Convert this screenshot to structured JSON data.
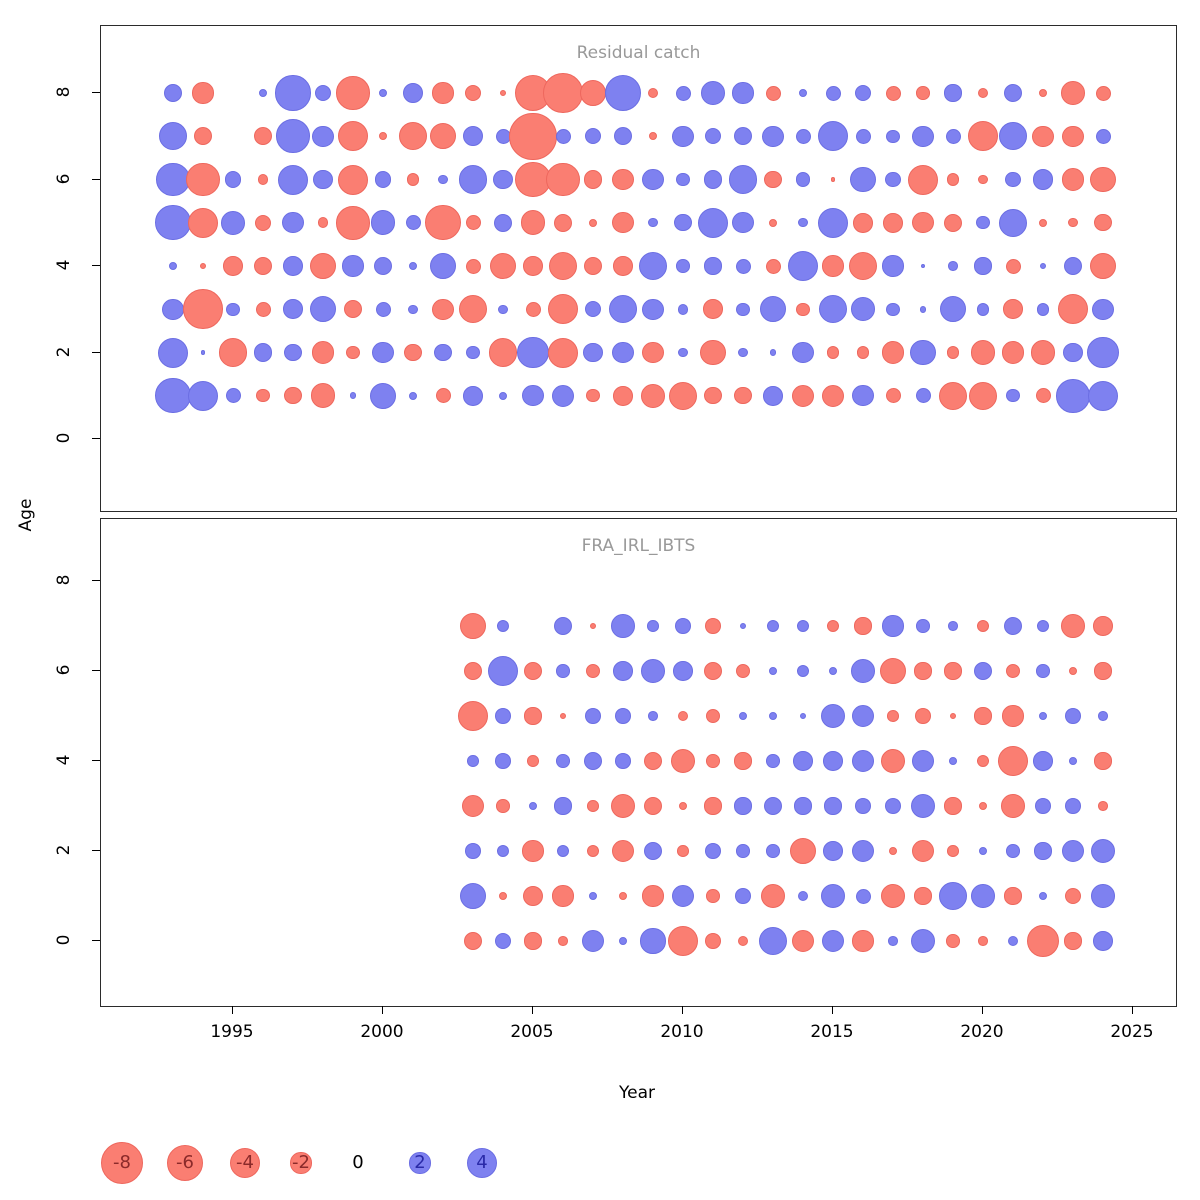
{
  "figure": {
    "background": "#ffffff"
  },
  "axes": {
    "xlabel": "Year",
    "ylabel": "Age",
    "x_ticks": [
      1995,
      2000,
      2005,
      2010,
      2015,
      2020,
      2025
    ],
    "y_ticks": [
      8,
      6,
      4,
      2,
      0
    ],
    "x_range": [
      1991.5,
      2026.5
    ],
    "y_range": [
      -1.2,
      9
    ]
  },
  "colors": {
    "negative_fill": "#fa7e72",
    "negative_border": "#ee675d",
    "positive_fill": "#7e81f0",
    "positive_border": "#6b6ee3",
    "panel_title": "#999999",
    "legend_negative_text": "#8b2a2a",
    "legend_positive_text": "#2a2aa8",
    "legend_zero_text": "#000000"
  },
  "legend": {
    "values": [
      -8,
      -6,
      -4,
      -2,
      0,
      2,
      4
    ]
  },
  "chart_data": {
    "type": "bubble",
    "title": "",
    "xlabel": "Year",
    "ylabel": "Age",
    "encoding": "circle radius proportional to sqrt(|residual|); red = negative residual, blue = positive residual",
    "panels": [
      {
        "title": "Residual catch",
        "x_start": 1993,
        "years": [
          1993,
          1994,
          1995,
          1996,
          1997,
          1998,
          1999,
          2000,
          2001,
          2002,
          2003,
          2004,
          2005,
          2006,
          2007,
          2008,
          2009,
          2010,
          2011,
          2012,
          2013,
          2014,
          2015,
          2016,
          2017,
          2018,
          2019,
          2020,
          2021,
          2022,
          2023,
          2024
        ],
        "series": [
          {
            "age": 8,
            "values": [
              1.5,
              -2,
              null,
              0.3,
              5.5,
              1.2,
              -5,
              0.3,
              1.8,
              -2,
              -1.2,
              -0.2,
              -6,
              -7,
              -3,
              6,
              -0.5,
              1,
              2.5,
              2,
              -1,
              0.3,
              1,
              1.2,
              -1,
              -0.8,
              1.3,
              -0.5,
              1.5,
              -0.3,
              -2.5,
              -1
            ]
          },
          {
            "age": 7,
            "values": [
              3.5,
              -1.5,
              null,
              -1.5,
              5,
              2,
              -4,
              -0.3,
              -3.5,
              -3,
              1.8,
              1,
              -10,
              1,
              1.2,
              1.5,
              -0.3,
              2,
              1.2,
              1.5,
              2,
              1,
              4,
              1,
              0.8,
              2,
              1,
              -4,
              3.5,
              -2,
              -2,
              1
            ]
          },
          {
            "age": 6,
            "values": [
              5,
              -5,
              1.2,
              -0.5,
              4,
              1.7,
              -4,
              1.2,
              -0.7,
              0.4,
              3.5,
              1.7,
              -5.5,
              -5,
              -1.5,
              -2,
              2,
              0.8,
              1.6,
              3.5,
              -1.3,
              0.9,
              -0.1,
              3,
              1.1,
              -4,
              -0.7,
              -0.4,
              1.1,
              1.8,
              -2.2,
              -3
            ]
          },
          {
            "age": 5,
            "values": [
              5.5,
              -4,
              2.5,
              -1.2,
              2,
              -0.5,
              -5,
              2.7,
              1,
              -5.5,
              -1,
              1.5,
              -2.7,
              -1.5,
              -0.3,
              -2,
              0.4,
              1.3,
              4,
              2,
              -0.3,
              0.4,
              4,
              -1.7,
              -1.7,
              -2,
              -1.5,
              0.8,
              3.5,
              -0.3,
              -0.4,
              -1.3
            ]
          },
          {
            "age": 4,
            "values": [
              0.3,
              -0.2,
              -1.7,
              -1.5,
              1.7,
              -3,
              2,
              1.5,
              0.3,
              3,
              -1,
              -3,
              -1.7,
              -3.5,
              -1.5,
              -1.7,
              3.5,
              0.8,
              1.3,
              1,
              -1,
              4,
              -2,
              -3.5,
              2,
              0.1,
              0.4,
              1.3,
              -1,
              0.2,
              1.5,
              -3
            ]
          },
          {
            "age": 3,
            "values": [
              2,
              -7,
              0.8,
              -1,
              1.7,
              3,
              -1.5,
              1,
              0.4,
              -2,
              -3.5,
              0.4,
              -1,
              -4,
              1.2,
              3.5,
              2,
              0.5,
              -1.7,
              0.8,
              3,
              -0.8,
              3.5,
              2.5,
              0.8,
              0.2,
              3,
              0.7,
              -1.7,
              0.7,
              -4,
              2
            ]
          },
          {
            "age": 2,
            "values": [
              4,
              0.1,
              -3.5,
              1.5,
              1.3,
              -2.2,
              -0.8,
              2,
              -1.3,
              1.3,
              0.8,
              -3.5,
              4.5,
              -4,
              1.7,
              2,
              -2,
              0.4,
              -3,
              0.4,
              0.2,
              2,
              -0.7,
              -0.7,
              -2.2,
              3,
              -0.7,
              -2.7,
              -2.2,
              -2.7,
              1.7,
              4.5
            ]
          },
          {
            "age": 1,
            "values": [
              5.5,
              4,
              1,
              -0.8,
              -1.3,
              -2.7,
              0.2,
              3,
              0.3,
              -1,
              1.7,
              0.3,
              2,
              2.2,
              -0.8,
              -1.7,
              -2.5,
              -3.5,
              -1.3,
              -1.3,
              1.7,
              -2.2,
              -2.2,
              2,
              -1,
              1,
              -3.5,
              -3.5,
              0.8,
              -1,
              5,
              4
            ]
          }
        ]
      },
      {
        "title": "FRA_IRL_IBTS",
        "x_start": 2003,
        "years": [
          2003,
          2004,
          2005,
          2006,
          2007,
          2008,
          2009,
          2010,
          2011,
          2012,
          2013,
          2014,
          2015,
          2016,
          2017,
          2018,
          2019,
          2020,
          2021,
          2022,
          2023,
          2024
        ],
        "series": [
          {
            "age": 7,
            "values": [
              -3,
              0.7,
              null,
              1.5,
              -0.2,
              2.5,
              0.6,
              1.1,
              -1.1,
              0.2,
              0.7,
              0.7,
              -0.7,
              -1.3,
              2,
              0.8,
              0.4,
              -0.7,
              1.5,
              0.7,
              -2.5,
              -1.7
            ]
          },
          {
            "age": 6,
            "values": [
              -1.5,
              4,
              -1.5,
              0.8,
              -0.9,
              1.7,
              2.5,
              1.7,
              -1.5,
              -0.9,
              0.3,
              0.7,
              0.3,
              2.5,
              -3,
              -1.3,
              -1.3,
              1.5,
              -0.9,
              0.8,
              -0.3,
              -1.3
            ]
          },
          {
            "age": 5,
            "values": [
              -4,
              1.1,
              -1.3,
              -0.2,
              1.1,
              1.1,
              0.4,
              -0.5,
              -0.9,
              0.3,
              0.3,
              0.2,
              2.7,
              2.2,
              -0.6,
              -1.1,
              -0.2,
              -1.3,
              -2,
              0.3,
              1.1,
              0.4
            ]
          },
          {
            "age": 4,
            "values": [
              0.6,
              1.1,
              -0.6,
              0.8,
              1.5,
              1.1,
              -1.5,
              -2.7,
              -0.8,
              -1.3,
              0.8,
              1.7,
              1.7,
              2.2,
              -2.7,
              2.2,
              0.3,
              -0.7,
              -4,
              1.7,
              0.3,
              -1.3
            ]
          },
          {
            "age": 3,
            "values": [
              -2.2,
              -0.8,
              0.3,
              1.3,
              -0.6,
              -2.7,
              -1.5,
              -0.3,
              -1.3,
              1.3,
              1.5,
              1.3,
              1.3,
              1.1,
              1.1,
              2.7,
              -1.3,
              -0.3,
              -2.5,
              1.1,
              1.1,
              -0.4
            ]
          },
          {
            "age": 2,
            "values": [
              1.1,
              0.7,
              -2,
              0.7,
              -0.7,
              -2.2,
              1.5,
              -0.6,
              1.1,
              0.8,
              0.8,
              -3,
              1.7,
              2.2,
              -0.3,
              -2.2,
              -0.6,
              0.3,
              0.8,
              1.3,
              2.2,
              2.7
            ]
          },
          {
            "age": 1,
            "values": [
              3.2,
              -0.3,
              -1.9,
              -2,
              0.3,
              -0.3,
              -2,
              2.2,
              -0.8,
              1.1,
              -2.7,
              0.5,
              2.7,
              1,
              -2.7,
              -1.3,
              3.5,
              2.5,
              -1.3,
              0.3,
              -1.2,
              2.5
            ]
          },
          {
            "age": 0,
            "values": [
              -1.5,
              1.2,
              -1.3,
              -0.4,
              2.2,
              0.3,
              2.8,
              -4,
              -1.1,
              -0.5,
              3.5,
              -2.2,
              2.2,
              -2,
              0.4,
              2.7,
              -0.8,
              -0.4,
              0.5,
              -4.6,
              -1.3,
              1.7
            ]
          }
        ]
      }
    ]
  }
}
